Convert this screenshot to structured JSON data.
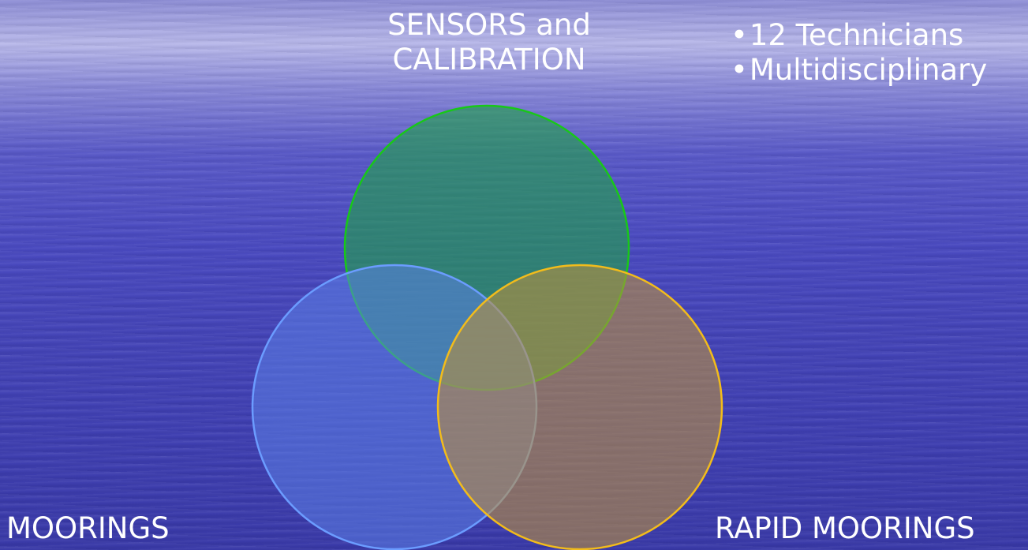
{
  "diagram": {
    "sets": {
      "top": {
        "label_line1": "SENSORS and",
        "label_line2": "CALIBRATION",
        "fill": "#22a24a",
        "stroke": "#18c818"
      },
      "left": {
        "label": "MOORINGS",
        "fill": "#5b7fe6",
        "stroke": "#6b9cff"
      },
      "right": {
        "label": "RAPID MOORINGS",
        "fill": "#b8903f",
        "stroke": "#f2bc1b"
      }
    },
    "bullets": [
      "12 Technicians",
      "Multidisciplinary"
    ]
  },
  "bullet_glyph": "•"
}
